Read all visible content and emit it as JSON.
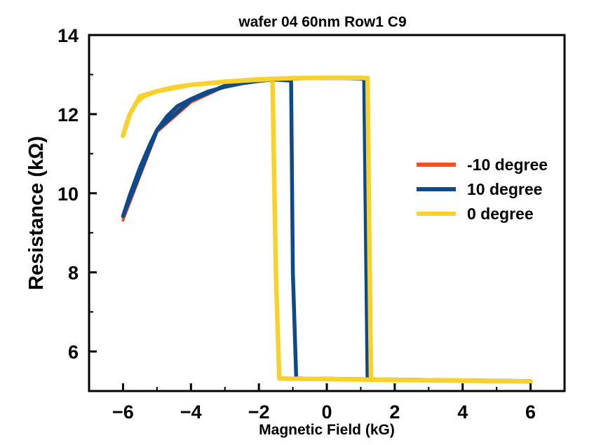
{
  "chart_data": {
    "type": "line",
    "title": "wafer 04 60nm Row1 C9",
    "xlabel": "Magnetic Field (kG)",
    "ylabel": "Resistance (kΩ)",
    "xlim": [
      -7,
      7
    ],
    "ylim": [
      5,
      14
    ],
    "xticks": [
      -6,
      -4,
      -2,
      0,
      2,
      4,
      6
    ],
    "xtick_labels": [
      "−6",
      "−4",
      "−2",
      "0",
      "2",
      "4",
      "6"
    ],
    "yticks": [
      6,
      8,
      10,
      12,
      14
    ],
    "ytick_labels": [
      "6",
      "8",
      "10",
      "12",
      "14"
    ],
    "grid": false,
    "legend_position": "right",
    "series": [
      {
        "name": "-10 degree",
        "color": "#F4511E",
        "x": [
          -6.0,
          -5.8,
          -5.5,
          -5.2,
          -5.0,
          -4.7,
          -4.4,
          -4.0,
          -3.5,
          -3.0,
          -2.5,
          -2.0,
          -1.5,
          -1.0,
          -0.5,
          0.0,
          0.5,
          1.0,
          1.1,
          1.15,
          1.2,
          1.25,
          1.4,
          2.0,
          3.0,
          4.0,
          5.0,
          6.0,
          5.0,
          4.0,
          3.0,
          2.0,
          1.0,
          0.0,
          -0.5,
          -0.9,
          -1.0,
          -1.05,
          -1.1,
          -1.5,
          -2.0,
          -3.0,
          -4.0,
          -5.0,
          -6.0
        ],
        "y": [
          9.32,
          9.85,
          10.55,
          11.2,
          11.55,
          11.9,
          12.15,
          12.35,
          12.55,
          12.68,
          12.77,
          12.83,
          12.87,
          12.9,
          12.91,
          12.91,
          12.91,
          12.89,
          12.88,
          9.0,
          5.32,
          5.31,
          5.3,
          5.29,
          5.28,
          5.27,
          5.26,
          5.25,
          5.26,
          5.27,
          5.28,
          5.29,
          5.3,
          5.31,
          5.31,
          5.32,
          8.0,
          12.83,
          12.84,
          12.86,
          12.84,
          12.7,
          12.3,
          11.55,
          9.32
        ]
      },
      {
        "name": "10 degree",
        "color": "#0D4A8C",
        "x": [
          -6.0,
          -5.8,
          -5.5,
          -5.2,
          -5.0,
          -4.7,
          -4.4,
          -4.0,
          -3.5,
          -3.0,
          -2.5,
          -2.0,
          -1.5,
          -1.0,
          -0.5,
          0.0,
          0.5,
          1.0,
          1.1,
          1.15,
          1.2,
          1.25,
          1.4,
          2.0,
          3.0,
          4.0,
          5.0,
          6.0,
          5.0,
          4.0,
          3.0,
          2.0,
          1.0,
          0.0,
          -0.5,
          -0.9,
          -1.0,
          -1.05,
          -1.1,
          -1.5,
          -2.0,
          -3.0,
          -4.0,
          -5.0,
          -6.0
        ],
        "y": [
          9.42,
          9.95,
          10.65,
          11.25,
          11.6,
          11.95,
          12.2,
          12.38,
          12.57,
          12.69,
          12.78,
          12.84,
          12.88,
          12.9,
          12.91,
          12.91,
          12.91,
          12.9,
          12.88,
          9.0,
          5.32,
          5.31,
          5.3,
          5.29,
          5.28,
          5.27,
          5.26,
          5.25,
          5.26,
          5.27,
          5.28,
          5.29,
          5.3,
          5.31,
          5.31,
          5.32,
          8.0,
          12.84,
          12.85,
          12.87,
          12.85,
          12.72,
          12.35,
          11.6,
          9.42
        ]
      },
      {
        "name": "0 degree",
        "color": "#F9D12C",
        "x": [
          -6.0,
          -5.9,
          -5.8,
          -5.6,
          -5.4,
          -5.0,
          -4.5,
          -4.0,
          -3.0,
          -2.0,
          -1.0,
          0.0,
          1.0,
          1.2,
          1.25,
          1.3,
          1.4,
          2.0,
          3.0,
          4.0,
          5.0,
          6.0,
          5.0,
          4.0,
          3.0,
          2.0,
          1.0,
          0.0,
          -1.0,
          -1.4,
          -1.5,
          -1.6,
          -1.7,
          -2.0,
          -3.0,
          -4.0,
          -5.0,
          -5.5,
          -5.8,
          -6.0
        ],
        "y": [
          11.45,
          11.75,
          12.0,
          12.3,
          12.45,
          12.58,
          12.68,
          12.74,
          12.82,
          12.88,
          12.91,
          12.92,
          12.92,
          12.91,
          9.0,
          5.3,
          5.29,
          5.28,
          5.27,
          5.26,
          5.25,
          5.24,
          5.25,
          5.26,
          5.27,
          5.28,
          5.29,
          5.3,
          5.31,
          5.32,
          8.0,
          12.88,
          12.88,
          12.87,
          12.82,
          12.74,
          12.58,
          12.45,
          12.0,
          11.45
        ]
      }
    ]
  }
}
